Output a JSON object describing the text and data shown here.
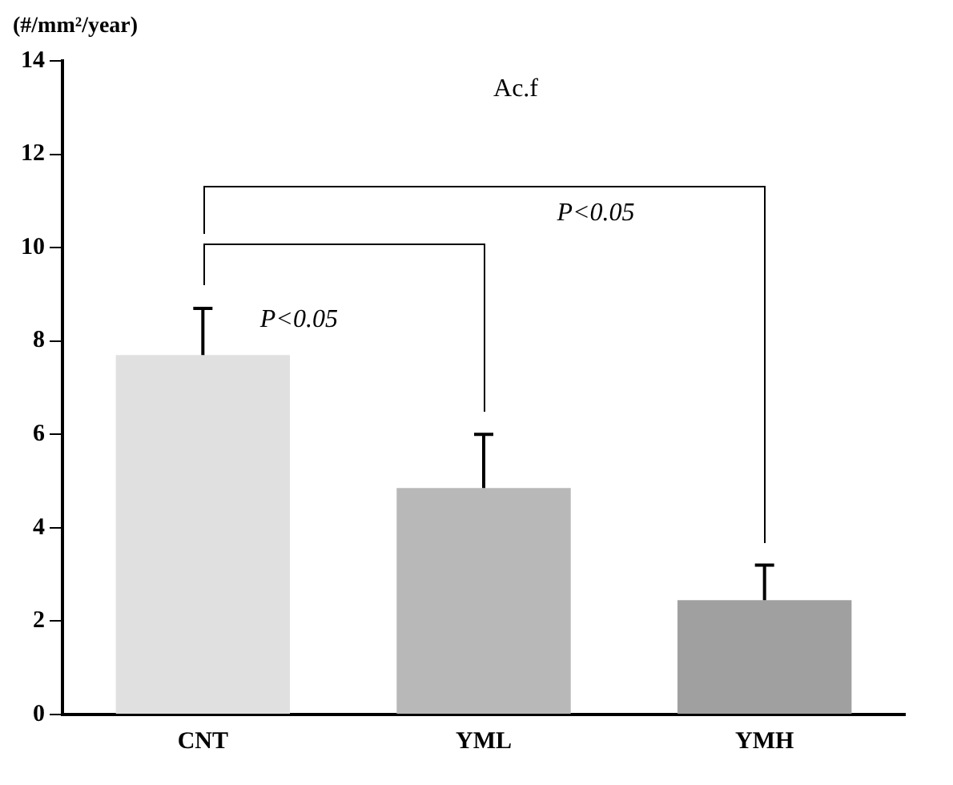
{
  "chart_data": {
    "type": "bar",
    "ylabel": "(#/mm²/year)",
    "categories": [
      "CNT",
      "YML",
      "YMH"
    ],
    "values": [
      7.7,
      4.85,
      2.45
    ],
    "errors": [
      [
        7.7,
        8.7
      ],
      [
        4.85,
        6.0
      ],
      [
        2.45,
        3.2
      ]
    ],
    "colors": [
      "#e0e0e0",
      "#b8b8b8",
      "#a0a0a0"
    ],
    "ylim": [
      0,
      14
    ],
    "yticks": [
      0,
      2,
      4,
      6,
      8,
      10,
      12,
      14
    ],
    "annotations": [
      "Ac.f",
      "P<0.05",
      "P<0.05"
    ],
    "grid": false,
    "legend": false
  }
}
